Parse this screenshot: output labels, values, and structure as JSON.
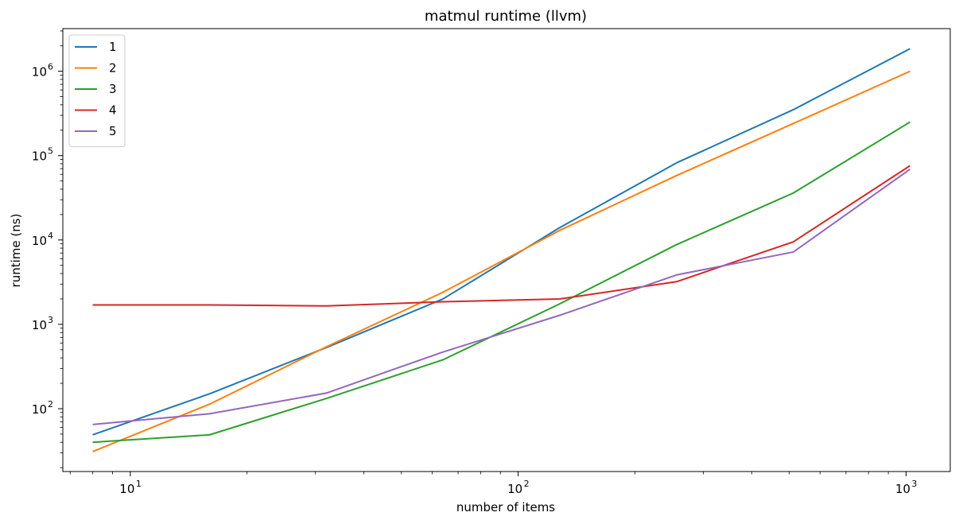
{
  "chart_data": {
    "type": "line",
    "title": "matmul runtime (llvm)",
    "xlabel": "number of items",
    "ylabel": "runtime (ns)",
    "xscale": "log",
    "yscale": "log",
    "xlim": [
      6.7,
      1300
    ],
    "ylim": [
      18,
      3200000
    ],
    "x": [
      8,
      16,
      32,
      64,
      128,
      256,
      512,
      1024
    ],
    "xticks": [
      {
        "base": "10",
        "exp": "1",
        "value": 10
      },
      {
        "base": "10",
        "exp": "2",
        "value": 100
      },
      {
        "base": "10",
        "exp": "3",
        "value": 1000
      }
    ],
    "yticks": [
      {
        "base": "10",
        "exp": "2",
        "value": 100
      },
      {
        "base": "10",
        "exp": "3",
        "value": 1000
      },
      {
        "base": "10",
        "exp": "4",
        "value": 10000
      },
      {
        "base": "10",
        "exp": "5",
        "value": 100000
      },
      {
        "base": "10",
        "exp": "6",
        "value": 1000000
      }
    ],
    "grid": false,
    "legend_position": "top-left",
    "series": [
      {
        "name": "1",
        "color": "#1f77b4",
        "values": [
          49,
          150,
          530,
          2000,
          14000,
          82000,
          350000,
          1850000
        ]
      },
      {
        "name": "2",
        "color": "#ff7f0e",
        "values": [
          31,
          113,
          540,
          2400,
          13000,
          58000,
          240000,
          1000000
        ]
      },
      {
        "name": "3",
        "color": "#2ca02c",
        "values": [
          40,
          49,
          132,
          380,
          1750,
          8800,
          36000,
          250000
        ]
      },
      {
        "name": "4",
        "color": "#d62728",
        "values": [
          1700,
          1700,
          1650,
          1850,
          2000,
          3200,
          9500,
          76000
        ]
      },
      {
        "name": "5",
        "color": "#9467bd",
        "values": [
          65,
          87,
          153,
          470,
          1280,
          3850,
          7200,
          69000
        ]
      }
    ]
  }
}
